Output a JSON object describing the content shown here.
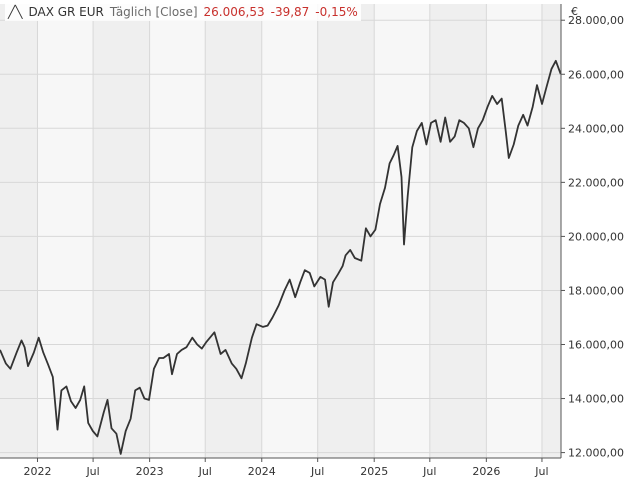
{
  "legend": {
    "symbol": "╱╲",
    "instrument": "DAX GR EUR",
    "mode": "Täglich [Close]",
    "last": "26.006,53",
    "change": "-39,87",
    "change_pct": "-0,15%"
  },
  "colors": {
    "line": "#333333",
    "band_light": "#f7f7f7",
    "band_dark": "#efefef",
    "grid": "#d8d8d8",
    "change": "#c8302c"
  },
  "chart_data": {
    "type": "line",
    "ylabel": "€",
    "ylim": [
      11800,
      28600
    ],
    "y_ticks": [
      {
        "value": 12000,
        "label": "12.000,00"
      },
      {
        "value": 14000,
        "label": "14.000,00"
      },
      {
        "value": 16000,
        "label": "16.000,00"
      },
      {
        "value": 18000,
        "label": "18.000,00"
      },
      {
        "value": 20000,
        "label": "20.000,00"
      },
      {
        "value": 22000,
        "label": "22.000,00"
      },
      {
        "value": 24000,
        "label": "24.000,00"
      },
      {
        "value": 26000,
        "label": "26.000,00"
      },
      {
        "value": 28000,
        "label": "28.000,00"
      }
    ],
    "xlim": [
      "2021-09-01",
      "2026-09-01"
    ],
    "x_ticks": [
      {
        "date": "2022-01-01",
        "label": "2022"
      },
      {
        "date": "2022-07-01",
        "label": "Jul"
      },
      {
        "date": "2023-01-01",
        "label": "2023"
      },
      {
        "date": "2023-07-01",
        "label": "Jul"
      },
      {
        "date": "2024-01-01",
        "label": "2024"
      },
      {
        "date": "2024-07-01",
        "label": "Jul"
      },
      {
        "date": "2025-01-01",
        "label": "2025"
      },
      {
        "date": "2025-07-01",
        "label": "Jul"
      },
      {
        "date": "2026-01-01",
        "label": "2026"
      },
      {
        "date": "2026-07-01",
        "label": "Jul"
      }
    ],
    "grid": true,
    "series": [
      {
        "values": [
          [
            "2021-09-01",
            15800
          ],
          [
            "2021-09-20",
            15300
          ],
          [
            "2021-10-05",
            15100
          ],
          [
            "2021-10-25",
            15700
          ],
          [
            "2021-11-10",
            16150
          ],
          [
            "2021-11-20",
            15900
          ],
          [
            "2021-12-01",
            15200
          ],
          [
            "2021-12-20",
            15700
          ],
          [
            "2022-01-05",
            16250
          ],
          [
            "2022-01-20",
            15700
          ],
          [
            "2022-02-05",
            15250
          ],
          [
            "2022-02-20",
            14800
          ],
          [
            "2022-03-07",
            12850
          ],
          [
            "2022-03-20",
            14300
          ],
          [
            "2022-04-05",
            14450
          ],
          [
            "2022-04-20",
            13900
          ],
          [
            "2022-05-05",
            13650
          ],
          [
            "2022-05-20",
            13950
          ],
          [
            "2022-06-02",
            14450
          ],
          [
            "2022-06-15",
            13100
          ],
          [
            "2022-06-30",
            12800
          ],
          [
            "2022-07-15",
            12600
          ],
          [
            "2022-08-05",
            13500
          ],
          [
            "2022-08-17",
            13950
          ],
          [
            "2022-08-30",
            12900
          ],
          [
            "2022-09-15",
            12700
          ],
          [
            "2022-09-29",
            11950
          ],
          [
            "2022-10-15",
            12800
          ],
          [
            "2022-10-31",
            13250
          ],
          [
            "2022-11-15",
            14300
          ],
          [
            "2022-11-30",
            14400
          ],
          [
            "2022-12-15",
            14000
          ],
          [
            "2022-12-30",
            13950
          ],
          [
            "2023-01-15",
            15100
          ],
          [
            "2023-02-01",
            15500
          ],
          [
            "2023-02-15",
            15500
          ],
          [
            "2023-03-05",
            15650
          ],
          [
            "2023-03-15",
            14900
          ],
          [
            "2023-03-31",
            15650
          ],
          [
            "2023-04-15",
            15800
          ],
          [
            "2023-05-01",
            15900
          ],
          [
            "2023-05-20",
            16250
          ],
          [
            "2023-06-05",
            16000
          ],
          [
            "2023-06-20",
            15850
          ],
          [
            "2023-07-05",
            16100
          ],
          [
            "2023-07-31",
            16450
          ],
          [
            "2023-08-20",
            15650
          ],
          [
            "2023-09-05",
            15800
          ],
          [
            "2023-09-25",
            15300
          ],
          [
            "2023-10-10",
            15100
          ],
          [
            "2023-10-27",
            14750
          ],
          [
            "2023-11-10",
            15300
          ],
          [
            "2023-11-30",
            16250
          ],
          [
            "2023-12-15",
            16750
          ],
          [
            "2024-01-05",
            16650
          ],
          [
            "2024-01-20",
            16700
          ],
          [
            "2024-02-05",
            17000
          ],
          [
            "2024-02-25",
            17450
          ],
          [
            "2024-03-15",
            18000
          ],
          [
            "2024-04-01",
            18400
          ],
          [
            "2024-04-19",
            17750
          ],
          [
            "2024-05-05",
            18300
          ],
          [
            "2024-05-20",
            18750
          ],
          [
            "2024-06-05",
            18650
          ],
          [
            "2024-06-20",
            18150
          ],
          [
            "2024-07-10",
            18500
          ],
          [
            "2024-07-25",
            18400
          ],
          [
            "2024-08-06",
            17400
          ],
          [
            "2024-08-20",
            18300
          ],
          [
            "2024-09-05",
            18600
          ],
          [
            "2024-09-20",
            18900
          ],
          [
            "2024-09-30",
            19300
          ],
          [
            "2024-10-15",
            19500
          ],
          [
            "2024-10-30",
            19200
          ],
          [
            "2024-11-20",
            19100
          ],
          [
            "2024-12-05",
            20300
          ],
          [
            "2024-12-20",
            20000
          ],
          [
            "2025-01-05",
            20250
          ],
          [
            "2025-01-20",
            21200
          ],
          [
            "2025-02-05",
            21800
          ],
          [
            "2025-02-20",
            22700
          ],
          [
            "2025-03-05",
            23000
          ],
          [
            "2025-03-18",
            23350
          ],
          [
            "2025-03-31",
            22200
          ],
          [
            "2025-04-08",
            19700
          ],
          [
            "2025-04-20",
            21500
          ],
          [
            "2025-05-05",
            23300
          ],
          [
            "2025-05-20",
            23900
          ],
          [
            "2025-06-05",
            24200
          ],
          [
            "2025-06-20",
            23400
          ],
          [
            "2025-07-05",
            24200
          ],
          [
            "2025-07-20",
            24300
          ],
          [
            "2025-08-05",
            23500
          ],
          [
            "2025-08-20",
            24400
          ],
          [
            "2025-09-05",
            23500
          ],
          [
            "2025-09-20",
            23700
          ],
          [
            "2025-10-05",
            24300
          ],
          [
            "2025-10-20",
            24200
          ],
          [
            "2025-11-05",
            24000
          ],
          [
            "2025-11-20",
            23300
          ],
          [
            "2025-12-05",
            24000
          ],
          [
            "2025-12-20",
            24300
          ],
          [
            "2026-01-05",
            24800
          ],
          [
            "2026-01-20",
            25200
          ],
          [
            "2026-02-05",
            24900
          ],
          [
            "2026-02-20",
            25100
          ],
          [
            "2026-03-05",
            23900
          ],
          [
            "2026-03-15",
            22900
          ],
          [
            "2026-03-31",
            23400
          ],
          [
            "2026-04-15",
            24100
          ],
          [
            "2026-05-01",
            24500
          ],
          [
            "2026-05-15",
            24100
          ],
          [
            "2026-06-01",
            24800
          ],
          [
            "2026-06-15",
            25600
          ],
          [
            "2026-07-01",
            24900
          ],
          [
            "2026-07-15",
            25500
          ],
          [
            "2026-08-01",
            26200
          ],
          [
            "2026-08-15",
            26500
          ],
          [
            "2026-08-31",
            26006.53
          ]
        ]
      }
    ]
  }
}
